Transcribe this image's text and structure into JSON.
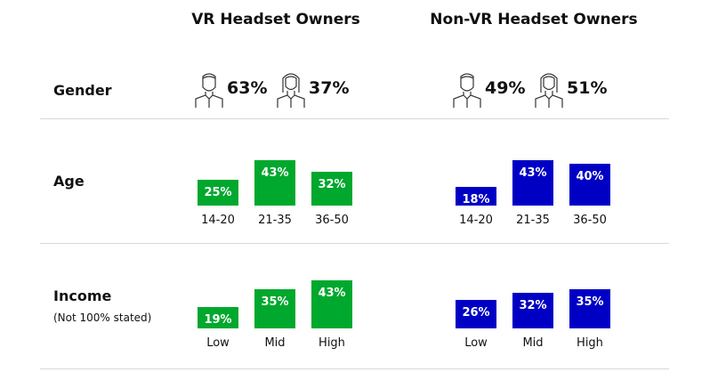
{
  "chart_data": {
    "type": "bar",
    "groups": [
      {
        "title": "VR Headset Owners",
        "color": "#00a82d",
        "gender": {
          "male": "63%",
          "female": "37%"
        },
        "age": {
          "categories": [
            "14-20",
            "21-35",
            "36-50"
          ],
          "values": [
            25,
            43,
            32
          ]
        },
        "income": {
          "categories": [
            "Low",
            "Mid",
            "High"
          ],
          "values": [
            19,
            35,
            43
          ]
        }
      },
      {
        "title": "Non-VR Headset Owners",
        "color": "#0000c4",
        "gender": {
          "male": "49%",
          "female": "51%"
        },
        "age": {
          "categories": [
            "14-20",
            "21-35",
            "36-50"
          ],
          "values": [
            18,
            43,
            40
          ]
        },
        "income": {
          "categories": [
            "Low",
            "Mid",
            "High"
          ],
          "values": [
            26,
            32,
            35
          ]
        }
      }
    ],
    "rows": {
      "gender": "Gender",
      "age": "Age",
      "income": "Income",
      "income_note": "(Not 100% stated)"
    },
    "value_suffix": "%"
  }
}
